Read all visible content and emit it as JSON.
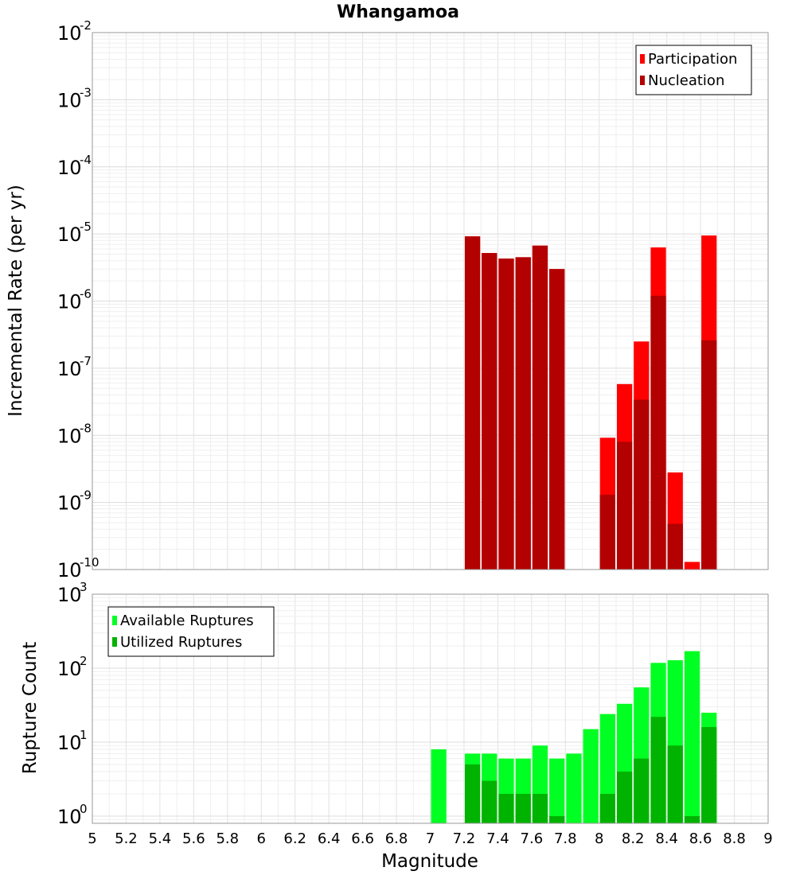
{
  "chart_data": [
    {
      "type": "bar",
      "title": "Whangamoa",
      "xlabel": "Magnitude",
      "ylabel": "Incremental Rate (per yr)",
      "y_scale": "log",
      "ylim": [
        1e-10,
        0.01
      ],
      "xlim": [
        5,
        9
      ],
      "grid": true,
      "legend_position": "top-right",
      "series": [
        {
          "name": "Participation",
          "color": "#ff0000",
          "x": [
            7.25,
            7.35,
            7.45,
            7.55,
            7.65,
            7.75,
            8.05,
            8.15,
            8.25,
            8.35,
            8.45,
            8.55,
            8.65
          ],
          "values": [
            9.2e-06,
            5.2e-06,
            4.3e-06,
            4.5e-06,
            6.7e-06,
            3e-06,
            9.2e-09,
            5.8e-08,
            2.5e-07,
            6.3e-06,
            2.8e-09,
            1.3e-10,
            9.5e-06
          ]
        },
        {
          "name": "Nucleation",
          "color": "#b30000",
          "x": [
            7.25,
            7.35,
            7.45,
            7.55,
            7.65,
            7.75,
            8.05,
            8.15,
            8.25,
            8.35,
            8.45,
            8.65
          ],
          "values": [
            9.2e-06,
            5.2e-06,
            4.3e-06,
            4.5e-06,
            6.7e-06,
            3e-06,
            1.3e-09,
            8e-09,
            3.4e-08,
            1.2e-06,
            4.8e-10,
            2.6e-07
          ]
        }
      ]
    },
    {
      "type": "bar",
      "title": "",
      "xlabel": "Magnitude",
      "ylabel": "Rupture Count",
      "y_scale": "log",
      "ylim": [
        0.8,
        1000
      ],
      "xlim": [
        5,
        9
      ],
      "grid": true,
      "legend_position": "top-left",
      "series": [
        {
          "name": "Available Ruptures",
          "color": "#00ff22",
          "x": [
            7.05,
            7.25,
            7.35,
            7.45,
            7.55,
            7.65,
            7.75,
            7.85,
            7.95,
            8.05,
            8.15,
            8.25,
            8.35,
            8.45,
            8.55,
            8.65
          ],
          "values": [
            8,
            7,
            7,
            6,
            6,
            9,
            6,
            7,
            15,
            24,
            33,
            55,
            118,
            128,
            170,
            25
          ]
        },
        {
          "name": "Utilized Ruptures",
          "color": "#00b300",
          "x": [
            7.25,
            7.35,
            7.45,
            7.55,
            7.65,
            7.75,
            8.05,
            8.15,
            8.25,
            8.35,
            8.45,
            8.55,
            8.65
          ],
          "values": [
            5,
            3,
            2,
            2,
            2,
            1,
            2,
            4,
            6,
            22,
            9,
            1,
            16
          ]
        }
      ]
    }
  ],
  "x_ticks": [
    "5",
    "5.2",
    "5.4",
    "5.6",
    "5.8",
    "6",
    "6.2",
    "6.4",
    "6.6",
    "6.8",
    "7",
    "7.2",
    "7.4",
    "7.6",
    "7.8",
    "8",
    "8.2",
    "8.4",
    "8.6",
    "8.8",
    "9"
  ],
  "top_y_exponents": [
    "-2",
    "-3",
    "-4",
    "-5",
    "-6",
    "-7",
    "-8",
    "-9",
    "-10"
  ],
  "bottom_y_exponents": [
    "3",
    "2",
    "1",
    "0"
  ],
  "y_base": "10"
}
